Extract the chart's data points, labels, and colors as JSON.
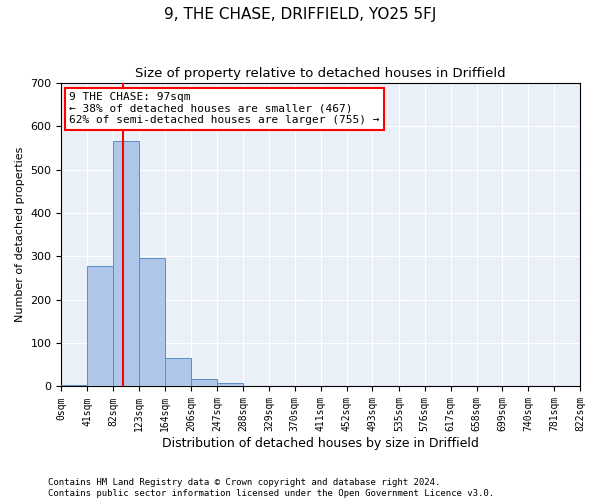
{
  "title": "9, THE CHASE, DRIFFIELD, YO25 5FJ",
  "subtitle": "Size of property relative to detached houses in Driffield",
  "xlabel": "Distribution of detached houses by size in Driffield",
  "ylabel": "Number of detached properties",
  "bar_color": "#aec6e8",
  "bar_edge_color": "#5a8fc2",
  "bg_color": "#eaf0f8",
  "grid_color": "white",
  "bins": [
    0,
    41,
    82,
    123,
    164,
    206,
    247,
    288,
    329,
    370,
    411,
    452,
    493,
    535,
    576,
    617,
    658,
    699,
    740,
    781,
    822
  ],
  "bin_labels": [
    "0sqm",
    "41sqm",
    "82sqm",
    "123sqm",
    "164sqm",
    "206sqm",
    "247sqm",
    "288sqm",
    "329sqm",
    "370sqm",
    "411sqm",
    "452sqm",
    "493sqm",
    "535sqm",
    "576sqm",
    "617sqm",
    "658sqm",
    "699sqm",
    "740sqm",
    "781sqm",
    "822sqm"
  ],
  "counts": [
    3,
    277,
    567,
    297,
    65,
    18,
    8,
    0,
    0,
    0,
    0,
    0,
    0,
    0,
    0,
    0,
    0,
    0,
    0,
    0
  ],
  "ylim": [
    0,
    700
  ],
  "yticks": [
    0,
    100,
    200,
    300,
    400,
    500,
    600,
    700
  ],
  "property_size_sqm": 97,
  "vline_color": "red",
  "vline_x": 97,
  "annotation_line1": "9 THE CHASE: 97sqm",
  "annotation_line2": "← 38% of detached houses are smaller (467)",
  "annotation_line3": "62% of semi-detached houses are larger (755) →",
  "annotation_box_color": "white",
  "annotation_box_edge_color": "red",
  "footer_line1": "Contains HM Land Registry data © Crown copyright and database right 2024.",
  "footer_line2": "Contains public sector information licensed under the Open Government Licence v3.0."
}
